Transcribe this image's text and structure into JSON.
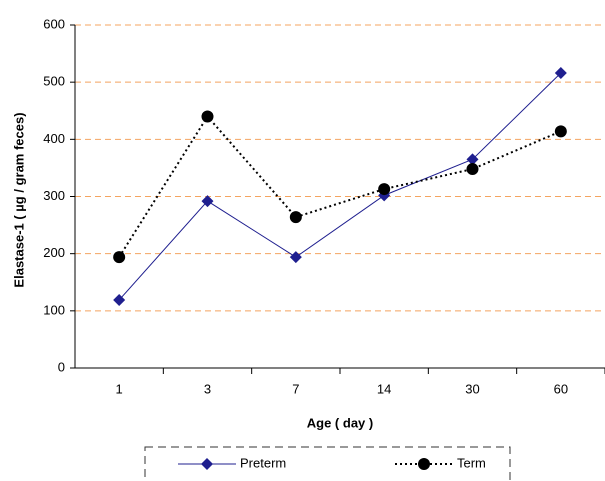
{
  "chart_data": {
    "type": "line",
    "x_label": "Age ( day )",
    "y_label": "Elastase-1 ( µg / gram feces)",
    "categories": [
      "1",
      "3",
      "7",
      "14",
      "30",
      "60"
    ],
    "series": [
      {
        "name": "Preterm",
        "color": "#1f1f8f",
        "marker": "diamond",
        "line_style": "solid",
        "values": [
          119,
          292,
          194,
          302,
          365,
          516
        ]
      },
      {
        "name": "Term",
        "color": "#000000",
        "marker": "circle",
        "line_style": "dotted",
        "values": [
          194,
          440,
          264,
          313,
          348,
          414
        ]
      }
    ],
    "ylim": [
      0,
      600
    ],
    "yticks": [
      0,
      100,
      200,
      300,
      400,
      500,
      600
    ],
    "grid": true,
    "grid_color": "#f4a460"
  }
}
